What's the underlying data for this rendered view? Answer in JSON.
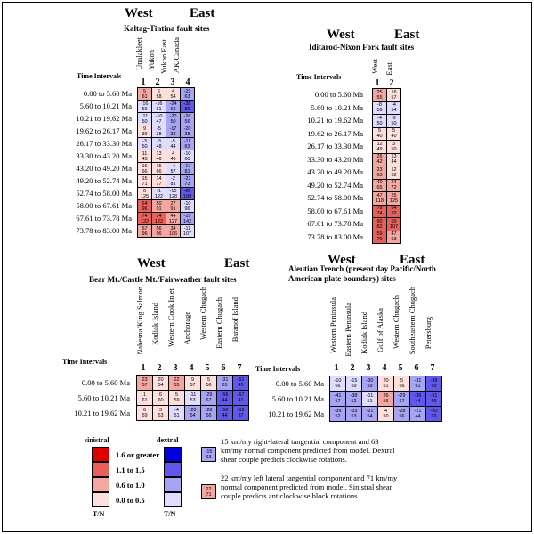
{
  "colors": {
    "sinistral": [
      "#fde0dc",
      "#f4a6a0",
      "#e8605a",
      "#e00000"
    ],
    "dextral": [
      "#e0dcfd",
      "#a8a4f4",
      "#6058e8",
      "#0000e0"
    ]
  },
  "panels": [
    {
      "id": "kaltag",
      "west": "West",
      "east": "East",
      "title": [
        "Kaltag-Tintina fault sites"
      ],
      "time_header": "Time Intervals",
      "columns": [
        {
          "num": "1",
          "name": "Unalakleet"
        },
        {
          "num": "2",
          "name": "Yukon"
        },
        {
          "num": "3",
          "name": "Yukon East"
        },
        {
          "num": "4",
          "name": "AK/Canada"
        }
      ],
      "rows": [
        {
          "label": "0.00 to 5.60 Ma",
          "cells": [
            [
              "5",
              "61",
              "p2"
            ],
            [
              "6",
              "58",
              "p1"
            ],
            [
              "4",
              "54",
              "p1"
            ],
            [
              "-29",
              "63",
              "b2"
            ]
          ]
        },
        {
          "label": "5.60 to 10.21 Ma",
          "cells": [
            [
              "-16",
              "59",
              "b1"
            ],
            [
              "-16",
              "61",
              "b1"
            ],
            [
              "-24",
              "62",
              "b2"
            ],
            [
              "-38",
              "86",
              "b3"
            ]
          ]
        },
        {
          "label": "10.21 to 19.62 Ma",
          "cells": [
            [
              "-11",
              "50",
              "b1"
            ],
            [
              "-10",
              "47",
              "b1"
            ],
            [
              "-20",
              "50",
              "b2"
            ],
            [
              "-26",
              "56",
              "b2"
            ]
          ]
        },
        {
          "label": "19.62 to 26.17 Ma",
          "cells": [
            [
              "9",
              "39",
              "p1"
            ],
            [
              "-5",
              "38",
              "b1"
            ],
            [
              "-17",
              "33",
              "b2"
            ],
            [
              "-20",
              "38",
              "b2"
            ]
          ]
        },
        {
          "label": "26.17 to 33.30 Ma",
          "cells": [
            [
              "-3",
              "50",
              "b1"
            ],
            [
              "-3",
              "48",
              "b1"
            ],
            [
              "-5",
              "44",
              "b1"
            ],
            [
              "-11",
              "63",
              "b2"
            ]
          ]
        },
        {
          "label": "33.30 to 43.20 Ma",
          "cells": [
            [
              "11",
              "45",
              "p1"
            ],
            [
              "13",
              "46",
              "p1"
            ],
            [
              "4",
              "40",
              "p1"
            ],
            [
              "-10",
              "60",
              "b1"
            ]
          ]
        },
        {
          "label": "43.20 to 49.20 Ma",
          "cells": [
            [
              "16",
              "66",
              "p1"
            ],
            [
              "15",
              "66",
              "p1"
            ],
            [
              "-4",
              "57",
              "b1"
            ],
            [
              "-17",
              "81",
              "b2"
            ]
          ]
        },
        {
          "label": "49.20 to 52.74 Ma",
          "cells": [
            [
              "15",
              "71",
              "p1"
            ],
            [
              "14",
              "77",
              "p1"
            ],
            [
              "-2",
              "81",
              "b1"
            ],
            [
              "-23",
              "73",
              "b2"
            ]
          ]
        },
        {
          "label": "52.74 to 58.00 Ma",
          "cells": [
            [
              "0",
              "125",
              "p1"
            ],
            [
              "-1",
              "122",
              "b1"
            ],
            [
              "-10",
              "128",
              "b1"
            ],
            [
              "-60",
              "109",
              "b3"
            ]
          ]
        },
        {
          "label": "58.00 to 67.61 Ma",
          "cells": [
            [
              "64",
              "96",
              "p3"
            ],
            [
              "50",
              "91",
              "p2"
            ],
            [
              "27",
              "91",
              "p2"
            ],
            [
              "-10",
              "96",
              "b1"
            ]
          ]
        },
        {
          "label": "67.61 to 73.78 Ma",
          "cells": [
            [
              "74",
              "122",
              "p3"
            ],
            [
              "74",
              "122",
              "p3"
            ],
            [
              "44",
              "127",
              "p2"
            ],
            [
              "-19",
              "142",
              "b2"
            ]
          ]
        },
        {
          "label": "73.78 to 83.00 Ma",
          "cells": [
            [
              "57",
              "96",
              "p2"
            ],
            [
              "56",
              "96",
              "p2"
            ],
            [
              "34",
              "106",
              "p2"
            ],
            [
              "-11",
              "107",
              "b1"
            ]
          ]
        }
      ]
    },
    {
      "id": "iditarod",
      "west": "West",
      "east": "East",
      "title": [
        "Iditarod-Nixon Fork fault sites"
      ],
      "time_header": "Time Intervals",
      "columns": [
        {
          "num": "1",
          "name": "West"
        },
        {
          "num": "2",
          "name": "East"
        }
      ],
      "rows": [
        {
          "label": "0.00 to 5.60 Ma",
          "cells": [
            [
              "25",
              "55",
              "p2"
            ],
            [
              "16",
              "57",
              "p1"
            ]
          ]
        },
        {
          "label": "5.60 to 10.21 Ma",
          "cells": [
            [
              "-8",
              "59",
              "b1"
            ],
            [
              "-4",
              "54",
              "b1"
            ]
          ]
        },
        {
          "label": "10.21 to 19.62 Ma",
          "cells": [
            [
              "-4",
              "50",
              "b1"
            ],
            [
              "-2",
              "50",
              "b1"
            ]
          ]
        },
        {
          "label": "19.62 to 26.17 Ma",
          "cells": [
            [
              "5",
              "40",
              "p1"
            ],
            [
              "5",
              "40",
              "p1"
            ]
          ]
        },
        {
          "label": "26.17 to 33.30 Ma",
          "cells": [
            [
              "12",
              "49",
              "p1"
            ],
            [
              "3",
              "50",
              "p1"
            ]
          ]
        },
        {
          "label": "33.30 to 43.20 Ma",
          "cells": [
            [
              "26",
              "42",
              "p2"
            ],
            [
              "13",
              "44",
              "p1"
            ]
          ]
        },
        {
          "label": "43.20 to 49.20 Ma",
          "cells": [
            [
              "23",
              "63",
              "p2"
            ],
            [
              "12",
              "62",
              "p1"
            ]
          ]
        },
        {
          "label": "49.20 to 52.74 Ma",
          "cells": [
            [
              "40",
              "65",
              "p2"
            ],
            [
              "24",
              "72",
              "p2"
            ]
          ]
        },
        {
          "label": "52.74 to 58.00 Ma",
          "cells": [
            [
              "47",
              "118",
              "p2"
            ],
            [
              "25",
              "125",
              "p2"
            ]
          ]
        },
        {
          "label": "58.00 to 67.61 Ma",
          "cells": [
            [
              "78",
              "74",
              "p3"
            ],
            [
              "64",
              "82",
              "p3"
            ]
          ]
        },
        {
          "label": "67.61 to 73.78 Ma",
          "cells": [
            [
              "90",
              "82",
              "p3"
            ],
            [
              "65",
              "107",
              "p3"
            ]
          ]
        },
        {
          "label": "73.78 to 83.00 Ma",
          "cells": [
            [
              "59",
              "70",
              "p3"
            ],
            [
              "47",
              "53",
              "p2"
            ]
          ]
        }
      ]
    },
    {
      "id": "bear",
      "west": "West",
      "east": "East",
      "title": [
        "Bear Mt./Castle Mt./Fairweather fault sites"
      ],
      "time_header": "Time Intervals",
      "columns": [
        {
          "num": "1",
          "name": "Nabesna/King Salmon"
        },
        {
          "num": "2",
          "name": "Kodiak Island"
        },
        {
          "num": "3",
          "name": "Western Cook Inlet"
        },
        {
          "num": "4",
          "name": "Anchorage"
        },
        {
          "num": "5",
          "name": "Western Chugach"
        },
        {
          "num": "6",
          "name": "Eastern Chugach"
        },
        {
          "num": "7",
          "name": "Baranof Island"
        }
      ],
      "rows": [
        {
          "label": "0.00 to 5.60 Ma",
          "cells": [
            [
              "23",
              "57",
              "p2"
            ],
            [
              "20",
              "54",
              "p1"
            ],
            [
              "22",
              "55",
              "p2"
            ],
            [
              "9",
              "57",
              "p1"
            ],
            [
              "5",
              "56",
              "p1"
            ],
            [
              "-31",
              "61",
              "b2"
            ],
            [
              "-51",
              "45",
              "b3"
            ]
          ]
        },
        {
          "label": "5.60 to 10.21 Ma",
          "cells": [
            [
              "1",
              "61",
              "p1"
            ],
            [
              "6",
              "60",
              "p1"
            ],
            [
              "5",
              "59",
              "p1"
            ],
            [
              "-11",
              "53",
              "b1"
            ],
            [
              "-29",
              "67",
              "b2"
            ],
            [
              "-56",
              "44",
              "b3"
            ],
            [
              "-67",
              "41",
              "b3"
            ]
          ]
        },
        {
          "label": "10.21 to 19.62 Ma",
          "cells": [
            [
              "6",
              "59",
              "p1"
            ],
            [
              "3",
              "53",
              "p1"
            ],
            [
              "-4",
              "51",
              "b1"
            ],
            [
              "-20",
              "54",
              "b2"
            ],
            [
              "-28",
              "56",
              "b2"
            ],
            [
              "-50",
              "44",
              "b3"
            ],
            [
              "-59",
              "37",
              "b3"
            ]
          ]
        }
      ]
    },
    {
      "id": "aleutian",
      "west": "West",
      "east": "East",
      "title": [
        "Aleutian Trench (present day Pacific/North",
        "American plate boundary) sites"
      ],
      "time_header": "Time Intervals",
      "columns": [
        {
          "num": "1",
          "name": "Western Peninsula"
        },
        {
          "num": "2",
          "name": "Eastern Peninsula"
        },
        {
          "num": "3",
          "name": "Kodiak Island"
        },
        {
          "num": "4",
          "name": "Gulf of Alaska"
        },
        {
          "num": "5",
          "name": "Western Chugach"
        },
        {
          "num": "6",
          "name": "Southeastern Chugach"
        },
        {
          "num": "7",
          "name": "Petersburg"
        }
      ],
      "rows": [
        {
          "label": "0.00 to 5.60 Ma",
          "cells": [
            [
              "-10",
              "66",
              "b1"
            ],
            [
              "-15",
              "59",
              "b1"
            ],
            [
              "-30",
              "59",
              "b2"
            ],
            [
              "20",
              "51",
              "p1"
            ],
            [
              "5",
              "56",
              "p1"
            ],
            [
              "-31",
              "61",
              "b2"
            ],
            [
              "-39",
              "59",
              "b3"
            ]
          ]
        },
        {
          "label": "5.60 to 10.21 Ma",
          "cells": [
            [
              "-41",
              "57",
              "b2"
            ],
            [
              "-38",
              "52",
              "b2"
            ],
            [
              "-11",
              "51",
              "b1"
            ],
            [
              "26",
              "56",
              "p2"
            ],
            [
              "-29",
              "67",
              "b2"
            ],
            [
              "-36",
              "44",
              "b3"
            ],
            [
              "-51",
              "69",
              "b3"
            ]
          ]
        },
        {
          "label": "10.21 to 19.62 Ma",
          "cells": [
            [
              "-39",
              "52",
              "b2"
            ],
            [
              "-33",
              "53",
              "b2"
            ],
            [
              "-21",
              "54",
              "b2"
            ],
            [
              "4",
              "50",
              "p1"
            ],
            [
              "-28",
              "56",
              "b2"
            ],
            [
              "-21",
              "44",
              "b2"
            ],
            [
              "-50",
              "30",
              "b3"
            ]
          ]
        }
      ]
    }
  ],
  "legend": {
    "sinistral_title": "sinistral",
    "dextral_title": "dextral",
    "levels": [
      "1.6 or greater",
      "1.1 to 1.5",
      "0.6 to 1.0",
      "0.0 to 0.5"
    ],
    "sinistral_axis": "T/N",
    "dextral_axis": "T/N",
    "example_dextral": {
      "top": "-15",
      "bottom": "63",
      "text": "15 km/my right-lateral tangential component and 63 km/my normal component predicted from model. Dextral shear couple predicts clockwise rotations."
    },
    "example_sinistral": {
      "top": "22",
      "bottom": "71",
      "text": "22 km/my left lateral tangential component and 71 km/my normal component predicted from model. Sinistral shear couple predicts anticlockwise block rotations."
    }
  }
}
